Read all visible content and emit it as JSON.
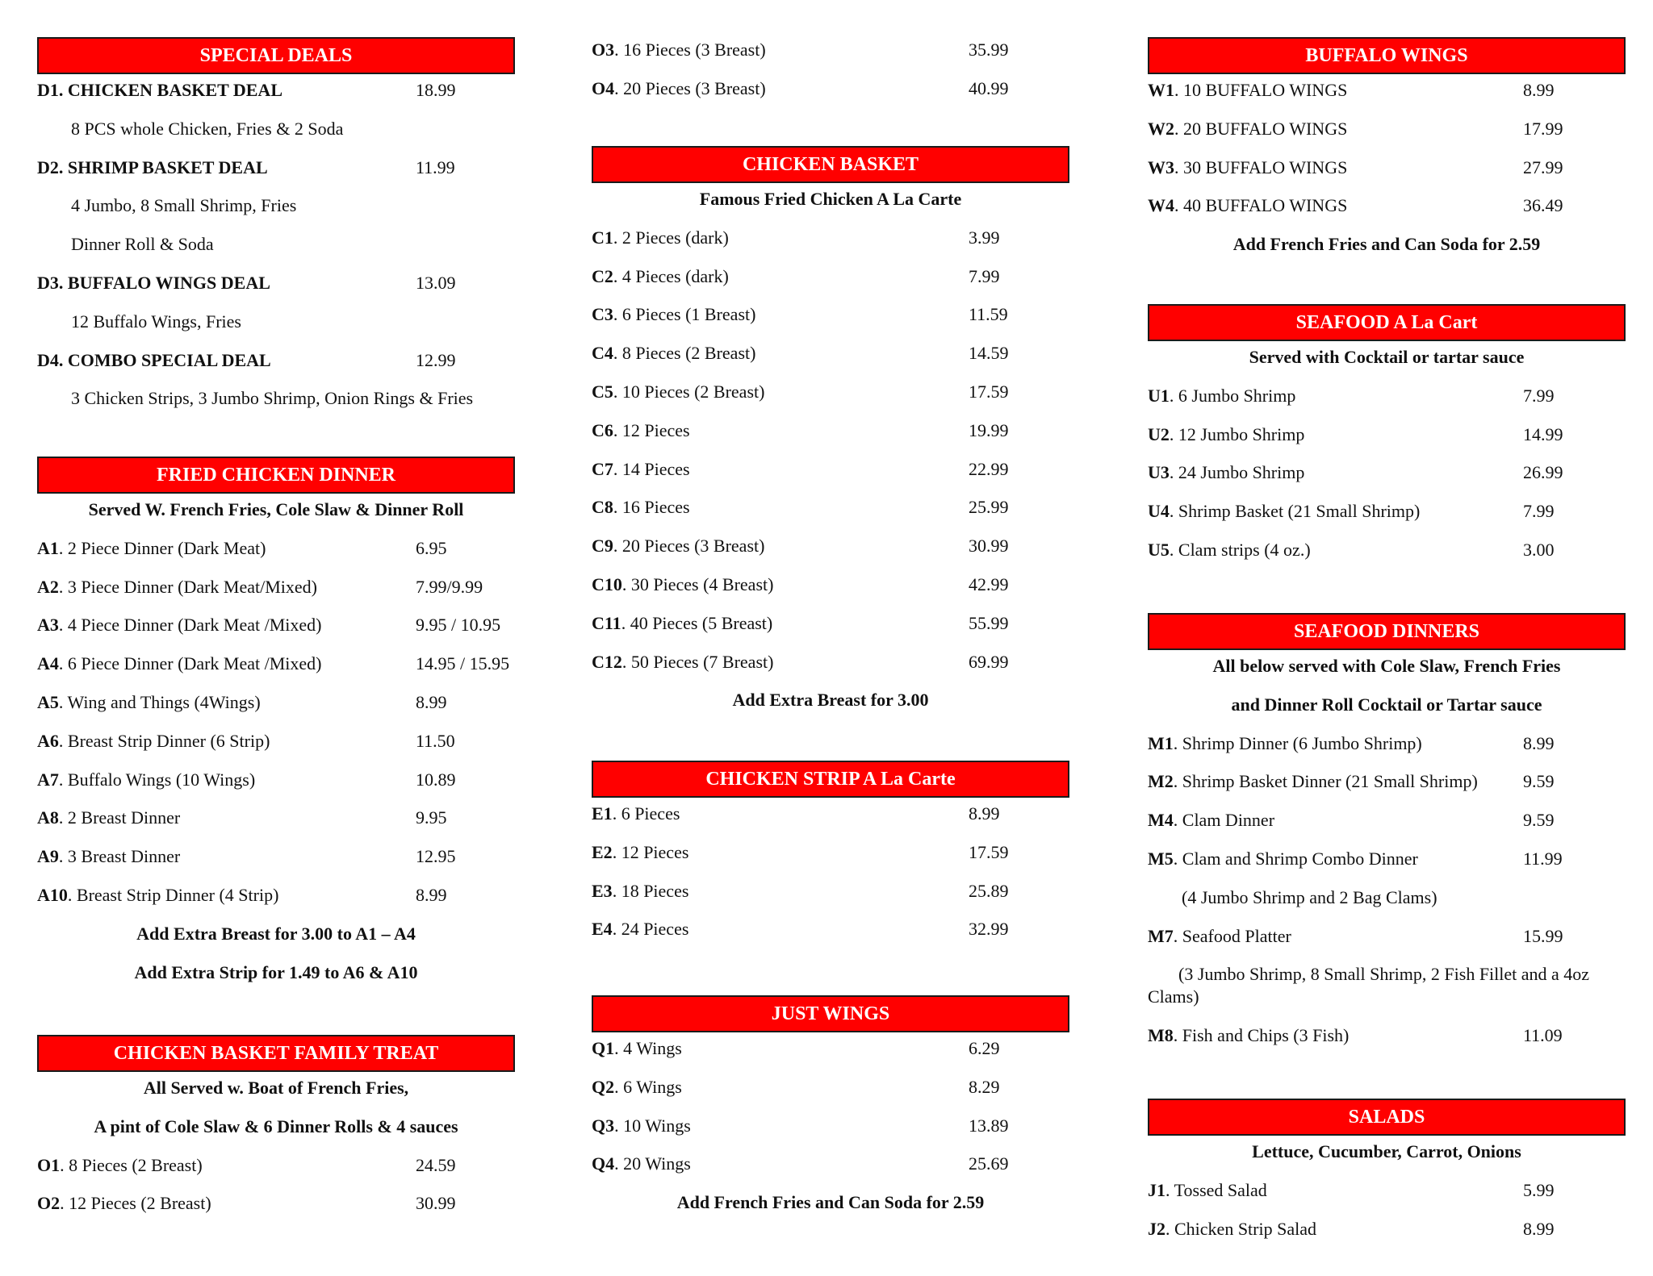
{
  "colors": {
    "header_bg": "#ff0000",
    "header_text": "#ffffff",
    "text": "#111111"
  },
  "columns": [
    [
      {
        "title": "SPECIAL DEALS",
        "lines": [
          {
            "type": "item",
            "code": "D1",
            "name": "CHICKEN BASKET DEAL",
            "price": "18.99",
            "bold": true
          },
          {
            "type": "desc",
            "text": "8 PCS whole Chicken, Fries & 2 Soda"
          },
          {
            "type": "item",
            "code": "D2",
            "name": "SHRIMP BASKET DEAL",
            "price": "11.99",
            "bold": true
          },
          {
            "type": "desc",
            "text": "4 Jumbo, 8 Small Shrimp, Fries"
          },
          {
            "type": "desc",
            "text": "Dinner Roll & Soda"
          },
          {
            "type": "item",
            "code": "D3",
            "name": "BUFFALO WINGS DEAL",
            "price": "13.09",
            "bold": true
          },
          {
            "type": "desc",
            "text": "12 Buffalo Wings, Fries"
          },
          {
            "type": "item",
            "code": "D4",
            "name": "COMBO SPECIAL DEAL",
            "price": "12.99",
            "bold": true
          },
          {
            "type": "desc",
            "text": "3 Chicken Strips, 3 Jumbo Shrimp, Onion Rings & Fries"
          }
        ]
      },
      {
        "title": "FRIED CHICKEN DINNER",
        "lines": [
          {
            "type": "sub",
            "text": "Served W. French Fries, Cole Slaw & Dinner Roll"
          },
          {
            "type": "item",
            "code": "A1",
            "name": "2 Piece Dinner (Dark Meat)",
            "price": "6.95"
          },
          {
            "type": "item",
            "code": "A2",
            "name": "3 Piece Dinner (Dark Meat/Mixed)",
            "price": "7.99/9.99"
          },
          {
            "type": "item",
            "code": "A3",
            "name": "4 Piece Dinner (Dark Meat /Mixed)",
            "price": "9.95 / 10.95"
          },
          {
            "type": "item",
            "code": "A4",
            "name": "6 Piece Dinner (Dark Meat /Mixed)",
            "price": "14.95 / 15.95"
          },
          {
            "type": "item",
            "code": "A5",
            "name": "Wing and Things (4Wings)",
            "price": "8.99"
          },
          {
            "type": "item",
            "code": "A6",
            "name": "Breast Strip Dinner (6 Strip)",
            "price": "11.50"
          },
          {
            "type": "item",
            "code": "A7",
            "name": "Buffalo Wings (10 Wings)",
            "price": "10.89"
          },
          {
            "type": "item",
            "code": "A8",
            "name": "2 Breast Dinner",
            "price": "9.95"
          },
          {
            "type": "item",
            "code": "A9",
            "name": "3 Breast Dinner",
            "price": "12.95"
          },
          {
            "type": "item",
            "code": "A10",
            "name": "Breast Strip Dinner (4 Strip)",
            "price": "8.99"
          },
          {
            "type": "note",
            "text": "Add Extra Breast for 3.00 to A1 – A4"
          },
          {
            "type": "note",
            "text": "Add Extra Strip for 1.49 to A6 & A10"
          }
        ]
      },
      {
        "title": "CHICKEN BASKET FAMILY TREAT",
        "lines": [
          {
            "type": "sub",
            "text": "All Served w. Boat of French Fries,"
          },
          {
            "type": "sub",
            "text": "A pint of Cole Slaw & 6 Dinner Rolls & 4 sauces"
          },
          {
            "type": "item",
            "code": "O1",
            "name": "8 Pieces (2 Breast)",
            "price": "24.59"
          },
          {
            "type": "item",
            "code": "O2",
            "name": "12 Pieces (2 Breast)",
            "price": "30.99"
          }
        ]
      }
    ],
    [
      {
        "title": null,
        "lines": [
          {
            "type": "item",
            "code": "O3",
            "name": "16 Pieces (3 Breast)",
            "price": "35.99"
          },
          {
            "type": "item",
            "code": "O4",
            "name": "20 Pieces (3 Breast)",
            "price": "40.99"
          }
        ]
      },
      {
        "title": "CHICKEN BASKET",
        "lines": [
          {
            "type": "sub",
            "text": "Famous Fried Chicken A La Carte"
          },
          {
            "type": "item",
            "code": "C1",
            "name": "2 Pieces (dark)",
            "price": "3.99"
          },
          {
            "type": "item",
            "code": "C2",
            "name": "4 Pieces (dark)",
            "price": "7.99"
          },
          {
            "type": "item",
            "code": "C3",
            "name": "6 Pieces (1 Breast)",
            "price": "11.59"
          },
          {
            "type": "item",
            "code": "C4",
            "name": "8 Pieces (2 Breast)",
            "price": "14.59"
          },
          {
            "type": "item",
            "code": "C5",
            "name": "10 Pieces (2 Breast)",
            "price": "17.59"
          },
          {
            "type": "item",
            "code": "C6",
            "name": "12 Pieces",
            "price": "19.99"
          },
          {
            "type": "item",
            "code": "C7",
            "name": "14 Pieces",
            "price": "22.99"
          },
          {
            "type": "item",
            "code": "C8",
            "name": "16 Pieces",
            "price": "25.99"
          },
          {
            "type": "item",
            "code": "C9",
            "name": "20 Pieces (3 Breast)",
            "price": "30.99"
          },
          {
            "type": "item",
            "code": "C10",
            "name": "30 Pieces (4 Breast)",
            "price": "42.99"
          },
          {
            "type": "item",
            "code": "C11",
            "name": "40 Pieces (5 Breast)",
            "price": "55.99"
          },
          {
            "type": "item",
            "code": "C12",
            "name": "50 Pieces (7 Breast)",
            "price": "69.99"
          },
          {
            "type": "note",
            "text": "Add Extra Breast for 3.00"
          }
        ]
      },
      {
        "title": "CHICKEN STRIP A La Carte",
        "lines": [
          {
            "type": "item",
            "code": "E1",
            "name": "6 Pieces",
            "price": "8.99"
          },
          {
            "type": "item",
            "code": "E2",
            "name": "12 Pieces",
            "price": "17.59"
          },
          {
            "type": "item",
            "code": "E3",
            "name": "18 Pieces",
            "price": "25.89"
          },
          {
            "type": "item",
            "code": "E4",
            "name": "24 Pieces",
            "price": "32.99"
          }
        ]
      },
      {
        "title": "JUST WINGS",
        "lines": [
          {
            "type": "item",
            "code": "Q1",
            "name": "4 Wings",
            "price": "6.29"
          },
          {
            "type": "item",
            "code": "Q2",
            "name": "6 Wings",
            "price": "8.29"
          },
          {
            "type": "item",
            "code": "Q3",
            "name": "10 Wings",
            "price": "13.89"
          },
          {
            "type": "item",
            "code": "Q4",
            "name": "20 Wings",
            "price": "25.69"
          },
          {
            "type": "note",
            "text": "Add French Fries and Can Soda for 2.59"
          }
        ]
      }
    ],
    [
      {
        "title": "BUFFALO WINGS",
        "lines": [
          {
            "type": "item",
            "code": "W1",
            "name": "10 BUFFALO WINGS",
            "price": "8.99"
          },
          {
            "type": "item",
            "code": "W2",
            "name": "20 BUFFALO WINGS",
            "price": "17.99"
          },
          {
            "type": "item",
            "code": "W3",
            "name": "30 BUFFALO WINGS",
            "price": "27.99"
          },
          {
            "type": "item",
            "code": "W4",
            "name": "40 BUFFALO WINGS",
            "price": "36.49"
          },
          {
            "type": "note",
            "text": "Add French Fries and Can Soda for 2.59"
          }
        ]
      },
      {
        "title": "SEAFOOD A La Cart",
        "lines": [
          {
            "type": "sub",
            "text": "Served with Cocktail or tartar sauce"
          },
          {
            "type": "item",
            "code": "U1",
            "name": "6 Jumbo Shrimp",
            "price": "7.99"
          },
          {
            "type": "item",
            "code": "U2",
            "name": "12 Jumbo Shrimp",
            "price": "14.99"
          },
          {
            "type": "item",
            "code": "U3",
            "name": "24 Jumbo Shrimp",
            "price": "26.99"
          },
          {
            "type": "item",
            "code": "U4",
            "name": "Shrimp Basket (21 Small Shrimp)",
            "price": "7.99"
          },
          {
            "type": "item",
            "code": "U5",
            "name": "Clam strips (4 oz.)",
            "price": "3.00"
          }
        ]
      },
      {
        "title": "SEAFOOD DINNERS",
        "lines": [
          {
            "type": "sub",
            "text": "All below served with Cole Slaw, French Fries"
          },
          {
            "type": "sub",
            "text": "and Dinner Roll Cocktail or Tartar sauce"
          },
          {
            "type": "item",
            "code": "M1",
            "name": "Shrimp Dinner (6 Jumbo Shrimp)",
            "price": "8.99"
          },
          {
            "type": "item",
            "code": "M2",
            "name": "Shrimp Basket Dinner (21 Small Shrimp)",
            "price": "9.59"
          },
          {
            "type": "item",
            "code": "M4",
            "name": "Clam Dinner",
            "price": "9.59"
          },
          {
            "type": "item",
            "code": "M5",
            "name": "Clam and Shrimp Combo Dinner",
            "price": "11.99"
          },
          {
            "type": "desc",
            "text": "(4 Jumbo Shrimp and 2 Bag Clams)"
          },
          {
            "type": "item",
            "code": "M7",
            "name": "Seafood Platter",
            "price": "15.99"
          },
          {
            "type": "wrapdesc",
            "text": "(3 Jumbo Shrimp, 8 Small Shrimp, 2 Fish Fillet and a 4oz Clams)"
          },
          {
            "type": "item",
            "code": "M8",
            "name": "Fish and Chips (3 Fish)",
            "price": "11.09"
          }
        ]
      },
      {
        "title": "SALADS",
        "lines": [
          {
            "type": "sub",
            "text": "Lettuce, Cucumber, Carrot, Onions"
          },
          {
            "type": "item",
            "code": "J1",
            "name": "Tossed Salad",
            "price": "5.99"
          },
          {
            "type": "item",
            "code": "J2",
            "name": "Chicken Strip Salad",
            "price": "8.99"
          }
        ]
      }
    ]
  ]
}
